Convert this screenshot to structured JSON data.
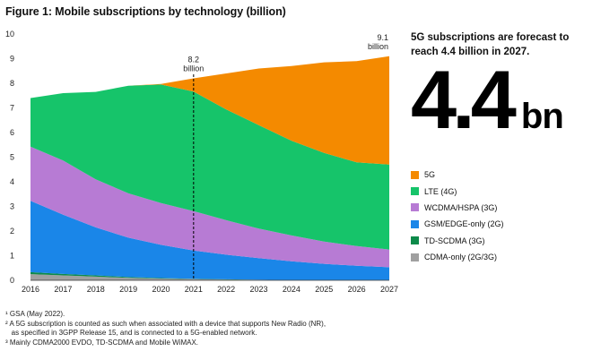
{
  "figure_title": "Figure 1: Mobile subscriptions by technology (billion)",
  "callout": {
    "text": "5G subscriptions are forecast to reach 4.4 billion in 2027.",
    "big_number": "4.4",
    "big_unit": "bn"
  },
  "footnotes": [
    "¹ GSA (May 2022).",
    "² A 5G subscription is counted as such when associated with a device that supports New Radio (NR),",
    "   as specified in 3GPP Release 15, and is connected to a 5G-enabled network.",
    "³ Mainly CDMA2000 EVDO, TD-SCDMA and Mobile WiMAX."
  ],
  "chart_data": {
    "type": "area",
    "stacked": true,
    "title": "Figure 1: Mobile subscriptions by technology (billion)",
    "x": [
      "2016",
      "2017",
      "2018",
      "2019",
      "2020",
      "2021",
      "2022",
      "2023",
      "2024",
      "2025",
      "2026",
      "2027"
    ],
    "ylim": [
      0,
      10
    ],
    "yticks": [
      0,
      1,
      2,
      3,
      4,
      5,
      6,
      7,
      8,
      9,
      10
    ],
    "series": [
      {
        "name": "CDMA-only (2G/3G)",
        "color": "#a0a0a0",
        "values": [
          0.25,
          0.2,
          0.15,
          0.1,
          0.07,
          0.05,
          0.03,
          0.02,
          0.01,
          0.01,
          0.01,
          0.01
        ]
      },
      {
        "name": "TD-SCDMA (3G)",
        "color": "#0d8a4a",
        "values": [
          0.08,
          0.06,
          0.05,
          0.03,
          0.02,
          0.01,
          0.01,
          0.0,
          0.0,
          0.0,
          0.0,
          0.0
        ]
      },
      {
        "name": "GSM/EDGE-only (2G)",
        "color": "#1a86e8",
        "values": [
          2.9,
          2.4,
          1.95,
          1.6,
          1.35,
          1.15,
          1.0,
          0.88,
          0.76,
          0.66,
          0.58,
          0.52
        ]
      },
      {
        "name": "WCDMA/HSPA (3G)",
        "color": "#b77bd4",
        "values": [
          2.2,
          2.2,
          1.95,
          1.8,
          1.7,
          1.6,
          1.4,
          1.2,
          1.05,
          0.9,
          0.8,
          0.72
        ]
      },
      {
        "name": "LTE (4G)",
        "color": "#16c46a",
        "values": [
          1.97,
          2.74,
          3.55,
          4.37,
          4.81,
          4.85,
          4.5,
          4.2,
          3.85,
          3.6,
          3.4,
          3.45
        ]
      },
      {
        "name": "5G",
        "color": "#f48a00",
        "values": [
          0.0,
          0.0,
          0.0,
          0.0,
          0.02,
          0.54,
          1.46,
          2.3,
          3.03,
          3.68,
          4.11,
          4.4
        ]
      }
    ],
    "annotations": [
      {
        "x": "2021",
        "value": "8.2",
        "label": "billion",
        "style": "dashed-line"
      },
      {
        "x": "2027",
        "value": "9.1",
        "label": "billion"
      }
    ]
  }
}
